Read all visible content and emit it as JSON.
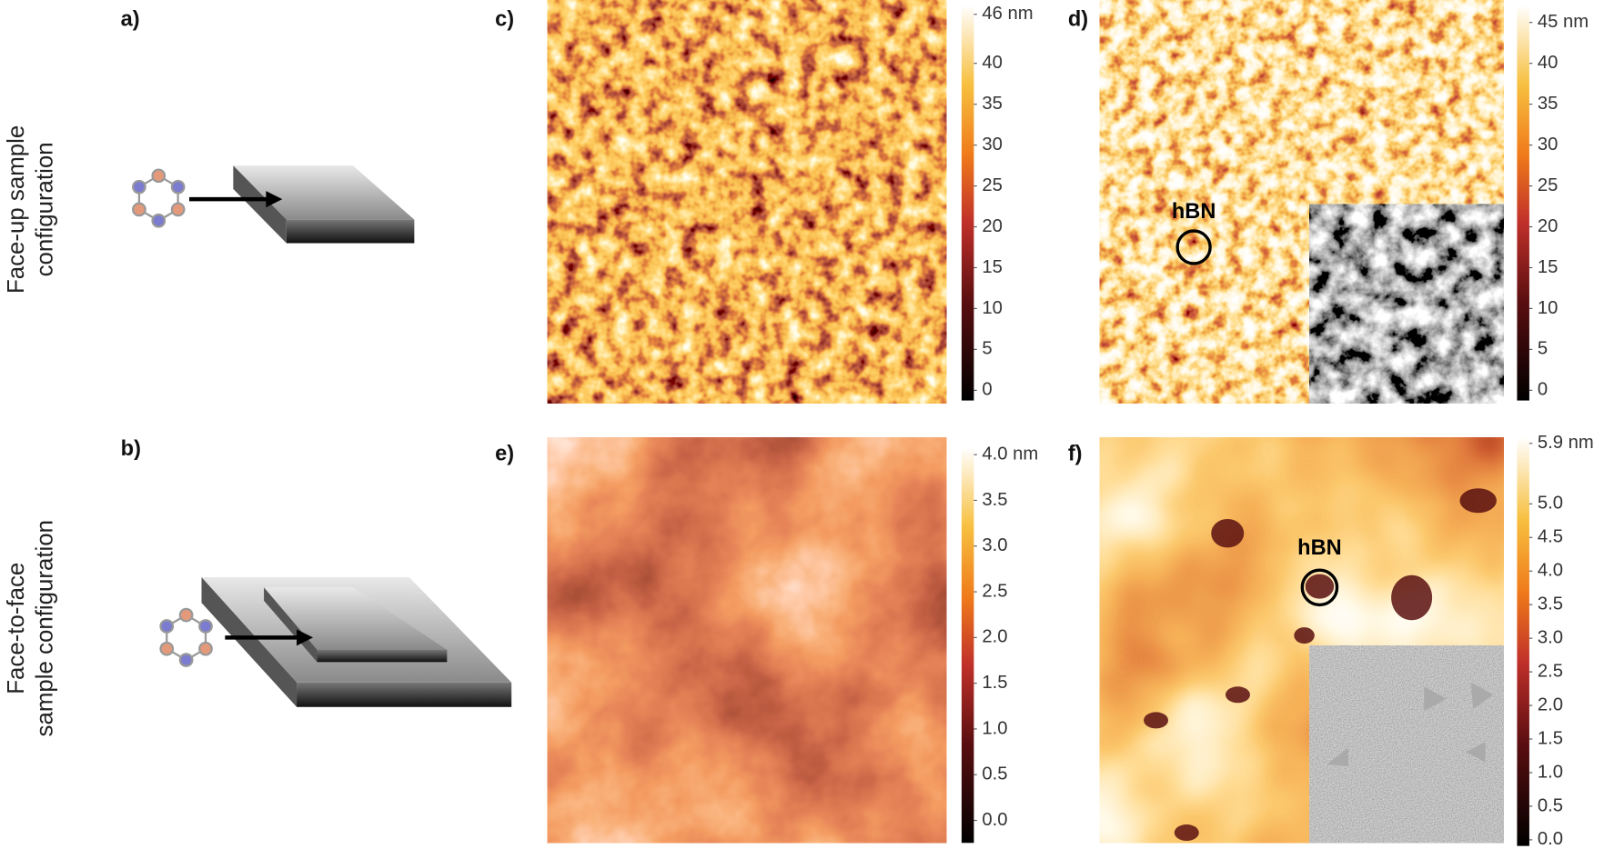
{
  "row_labels": [
    [
      "Face-up sample",
      "configuration"
    ],
    [
      "Face-to-face",
      "sample configuration"
    ]
  ],
  "panels": [
    {
      "label": "a)"
    },
    {
      "label": "b)"
    },
    {
      "label": "c)",
      "colorbar": {
        "range": [
          0,
          46
        ],
        "ticks": [
          0,
          5,
          10,
          15,
          20,
          25,
          30,
          35,
          40,
          {
            "value": 46,
            "label": "46 nm"
          }
        ]
      }
    },
    {
      "label": "d)",
      "annotation": "hBN",
      "colorbar": {
        "range": [
          0,
          45
        ],
        "ticks": [
          0,
          5,
          10,
          15,
          20,
          25,
          30,
          35,
          40,
          {
            "value": 45,
            "label": "45 nm"
          }
        ]
      }
    },
    {
      "label": "e)",
      "colorbar": {
        "range": [
          0,
          4
        ],
        "ticks": [
          {
            "value": 0,
            "label": "0.0"
          },
          0.5,
          {
            "value": 1,
            "label": "1.0"
          },
          1.5,
          {
            "value": 2,
            "label": "2.0"
          },
          2.5,
          {
            "value": 3,
            "label": "3.0"
          },
          3.5,
          {
            "value": 4,
            "label": "4.0 nm"
          }
        ]
      }
    },
    {
      "label": "f)",
      "annotation": "hBN",
      "colorbar": {
        "range": [
          0,
          5.9
        ],
        "ticks": [
          {
            "value": 0,
            "label": "0.0"
          },
          0.5,
          {
            "value": 1,
            "label": "1.0"
          },
          1.5,
          {
            "value": 2,
            "label": "2.0"
          },
          2.5,
          {
            "value": 3,
            "label": "3.0"
          },
          3.5,
          {
            "value": 4,
            "label": "4.0"
          },
          4.5,
          {
            "value": 5,
            "label": "5.0"
          },
          {
            "value": 5.9,
            "label": "5.9 nm"
          }
        ]
      }
    }
  ]
}
